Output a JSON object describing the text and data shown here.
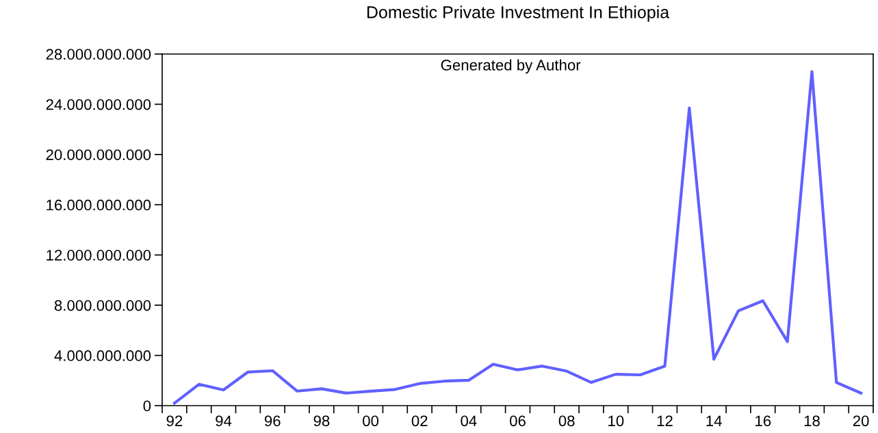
{
  "chart_data": {
    "type": "line",
    "title": "Domestic Private Investment In Ethiopia",
    "annotations": [
      "Generated by Author"
    ],
    "categories": [
      "92",
      null,
      "94",
      null,
      "96",
      null,
      "98",
      null,
      "00",
      null,
      "02",
      null,
      "04",
      null,
      "06",
      null,
      "08",
      null,
      "10",
      null,
      "12",
      null,
      "14",
      null,
      "16",
      null,
      "18",
      null,
      "20"
    ],
    "series": [
      {
        "color": "#6060ff",
        "values": [
          200000000,
          1700000000,
          1250000000,
          2680000000,
          2780000000,
          1160000000,
          1340000000,
          1000000000,
          1150000000,
          1290000000,
          1760000000,
          1950000000,
          2020000000,
          3300000000,
          2850000000,
          3150000000,
          2750000000,
          1850000000,
          2500000000,
          2450000000,
          3150000000,
          23700000000,
          3700000000,
          7550000000,
          8350000000,
          5100000000,
          26600000000,
          1850000000,
          1000000000
        ]
      }
    ],
    "ylim": [
      0,
      28000000000
    ],
    "yticks": [
      {
        "value": 0,
        "label": "0"
      },
      {
        "value": 4000000000,
        "label": "4.000.000.000"
      },
      {
        "value": 8000000000,
        "label": "8.000.000.000"
      },
      {
        "value": 12000000000,
        "label": "12.000.000.000"
      },
      {
        "value": 16000000000,
        "label": "16.000.000.000"
      },
      {
        "value": 20000000000,
        "label": "20.000.000.000"
      },
      {
        "value": 24000000000,
        "label": "24.000.000.000"
      },
      {
        "value": 28000000000,
        "label": "28.000.000.000"
      }
    ],
    "grid": false,
    "line_style": "solid",
    "marker": "none"
  }
}
